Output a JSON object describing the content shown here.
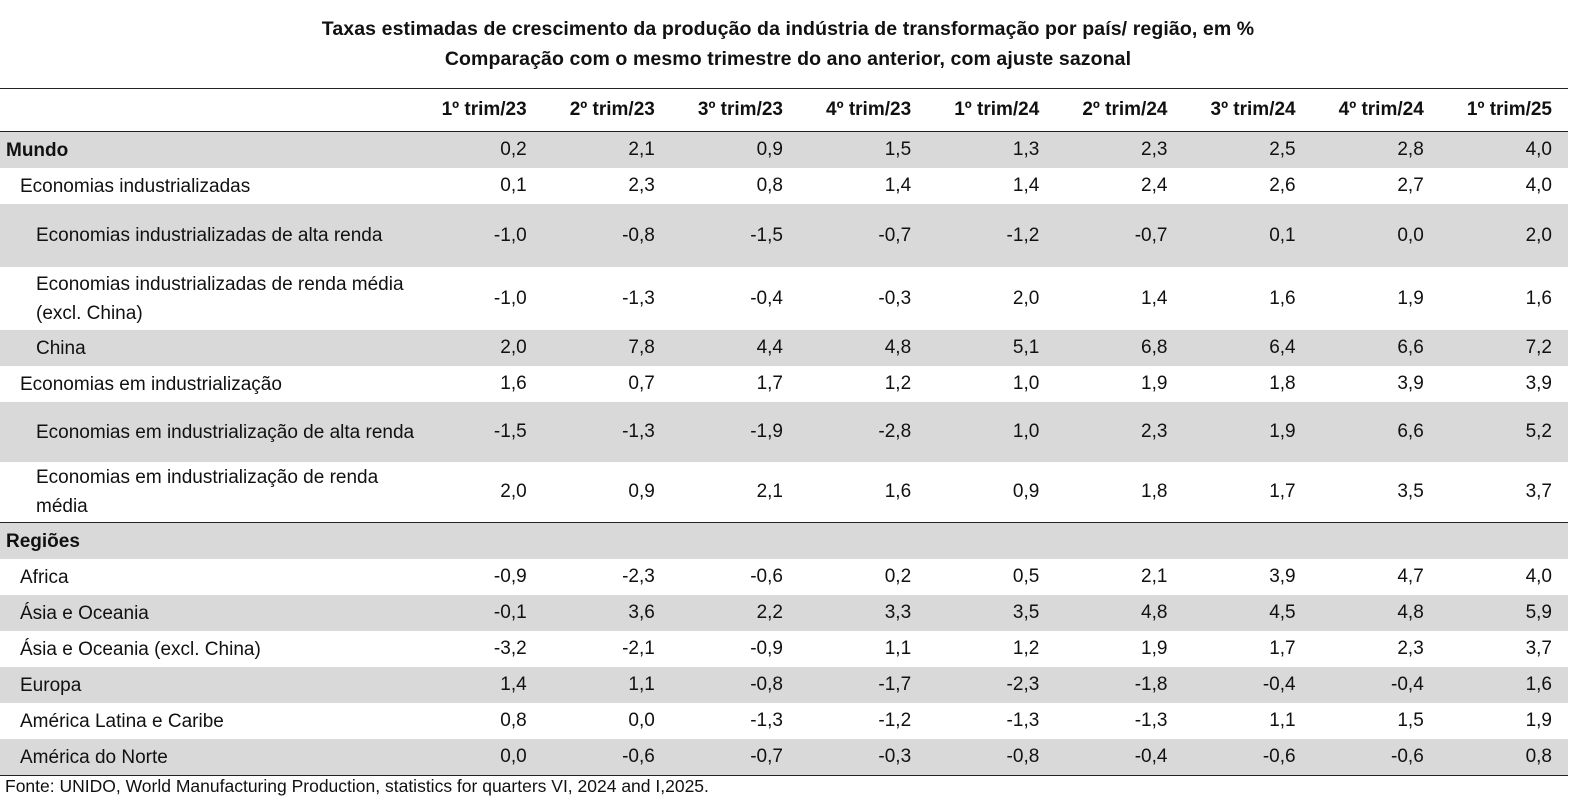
{
  "title": {
    "line1": "Taxas estimadas de crescimento da produção da indústria de transformação por país/ região, em %",
    "line2": "Comparação com o mesmo trimestre do ano anterior, com ajuste sazonal"
  },
  "columns": [
    "1º trim/23",
    "2º trim/23",
    "3º trim/23",
    "4º trim/23",
    "1º trim/24",
    "2º trim/24",
    "3º trim/24",
    "4º trim/24",
    "1º trim/25"
  ],
  "rows": [
    {
      "label": "Mundo",
      "values": [
        "0,2",
        "2,1",
        "0,9",
        "1,5",
        "1,3",
        "2,3",
        "2,5",
        "2,8",
        "4,0"
      ]
    },
    {
      "label": "Economias industrializadas",
      "values": [
        "0,1",
        "2,3",
        "0,8",
        "1,4",
        "1,4",
        "2,4",
        "2,6",
        "2,7",
        "4,0"
      ]
    },
    {
      "label": "Economias industrializadas de alta renda",
      "values": [
        "-1,0",
        "-0,8",
        "-1,5",
        "-0,7",
        "-1,2",
        "-0,7",
        "0,1",
        "0,0",
        "2,0"
      ]
    },
    {
      "label": "Economias industrializadas de renda média (excl. China)",
      "values": [
        "-1,0",
        "-1,3",
        "-0,4",
        "-0,3",
        "2,0",
        "1,4",
        "1,6",
        "1,9",
        "1,6"
      ]
    },
    {
      "label": "China",
      "values": [
        "2,0",
        "7,8",
        "4,4",
        "4,8",
        "5,1",
        "6,8",
        "6,4",
        "6,6",
        "7,2"
      ]
    },
    {
      "label": "Economias em industrialização",
      "values": [
        "1,6",
        "0,7",
        "1,7",
        "1,2",
        "1,0",
        "1,9",
        "1,8",
        "3,9",
        "3,9"
      ]
    },
    {
      "label": "Economias em industrialização de alta renda",
      "values": [
        "-1,5",
        "-1,3",
        "-1,9",
        "-2,8",
        "1,0",
        "2,3",
        "1,9",
        "6,6",
        "5,2"
      ]
    },
    {
      "label": "Economias em industrialização de renda média",
      "values": [
        "2,0",
        "0,9",
        "2,1",
        "1,6",
        "0,9",
        "1,8",
        "1,7",
        "3,5",
        "3,7"
      ]
    },
    {
      "label": "Regiões",
      "values": [
        "",
        "",
        "",
        "",
        "",
        "",
        "",
        "",
        ""
      ]
    },
    {
      "label": "Africa",
      "values": [
        "-0,9",
        "-2,3",
        "-0,6",
        "0,2",
        "0,5",
        "2,1",
        "3,9",
        "4,7",
        "4,0"
      ]
    },
    {
      "label": "Ásia e Oceania",
      "values": [
        "-0,1",
        "3,6",
        "2,2",
        "3,3",
        "3,5",
        "4,8",
        "4,5",
        "4,8",
        "5,9"
      ]
    },
    {
      "label": "Ásia e Oceania (excl. China)",
      "values": [
        "-3,2",
        "-2,1",
        "-0,9",
        "1,1",
        "1,2",
        "1,9",
        "1,7",
        "2,3",
        "3,7"
      ]
    },
    {
      "label": "Europa",
      "values": [
        "1,4",
        "1,1",
        "-0,8",
        "-1,7",
        "-2,3",
        "-1,8",
        "-0,4",
        "-0,4",
        "1,6"
      ]
    },
    {
      "label": "América Latina e Caribe",
      "values": [
        "0,8",
        "0,0",
        "-1,3",
        "-1,2",
        "-1,3",
        "-1,3",
        "1,1",
        "1,5",
        "1,9"
      ]
    },
    {
      "label": "América do Norte",
      "values": [
        "0,0",
        "-0,6",
        "-0,7",
        "-0,3",
        "-0,8",
        "-0,4",
        "-0,6",
        "-0,6",
        "0,8"
      ]
    }
  ],
  "source": "Fonte: UNIDO, World Manufacturing Production, statistics for quarters VI, 2024 and I,2025."
}
